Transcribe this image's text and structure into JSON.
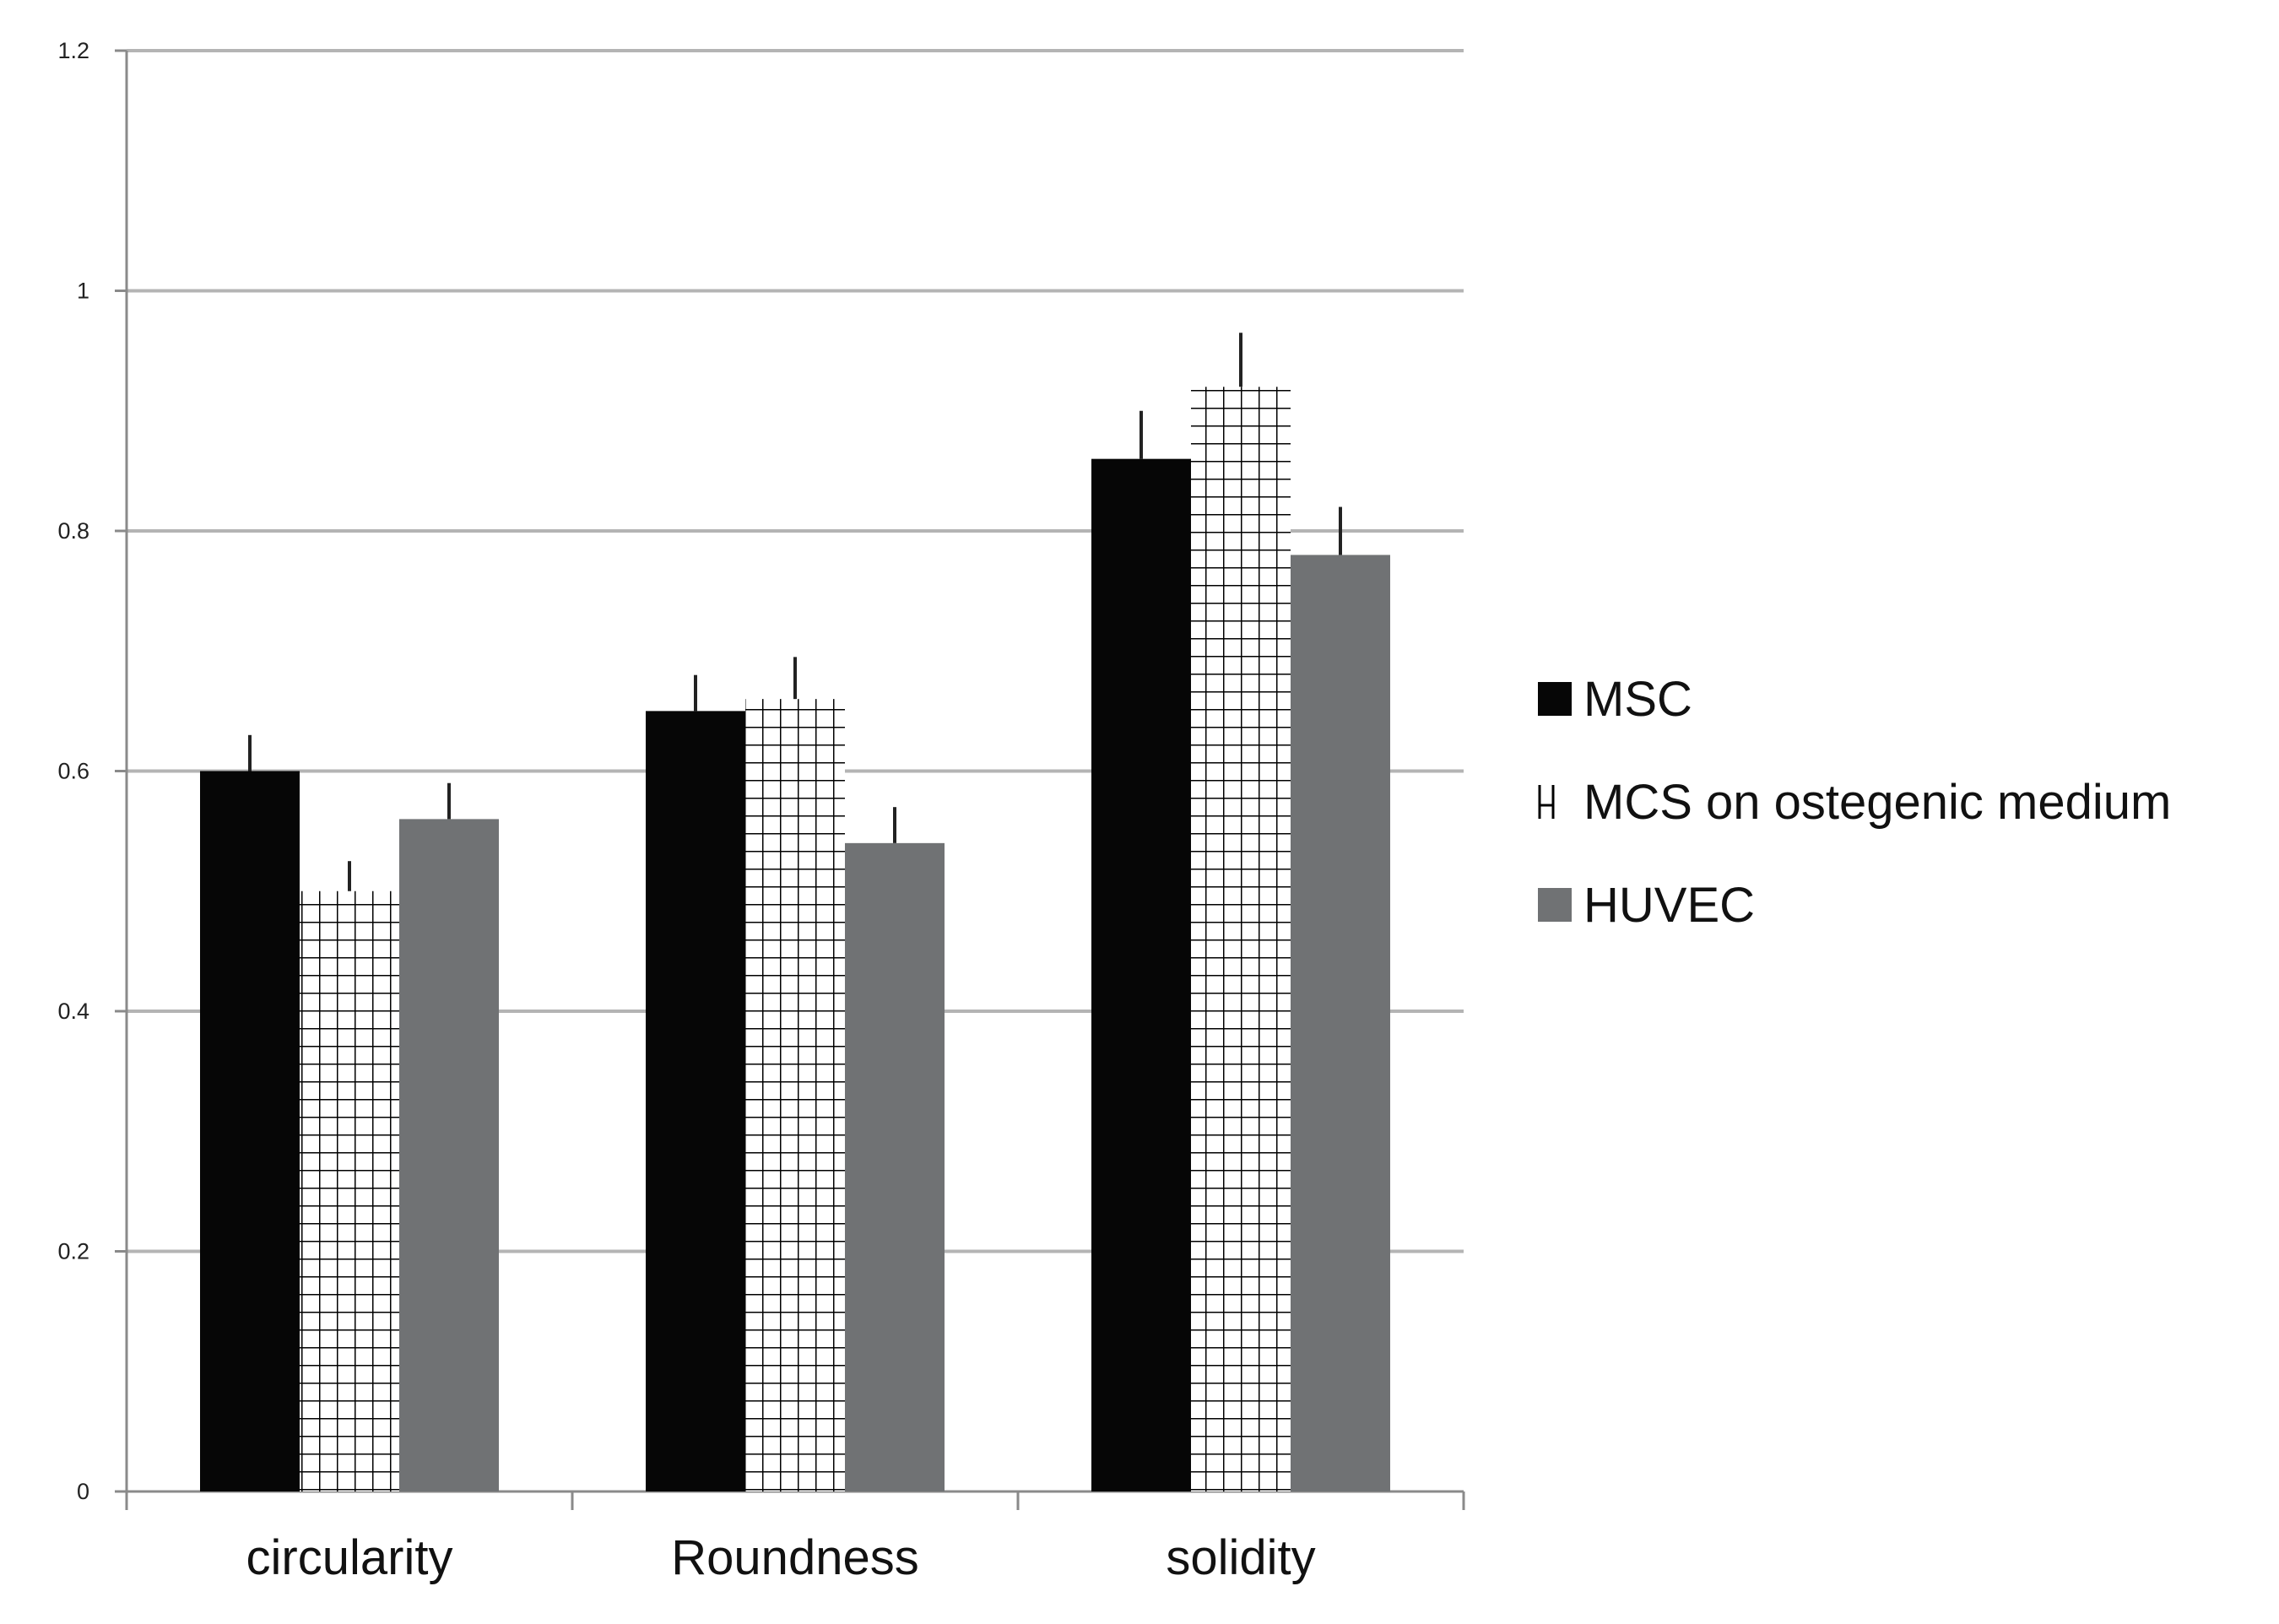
{
  "chart_data": {
    "type": "bar",
    "title": "",
    "xlabel": "",
    "ylabel": "",
    "categories": [
      "circularity",
      "Roundness",
      "solidity"
    ],
    "series": [
      {
        "name": "MSC",
        "values": [
          0.6,
          0.65,
          0.86
        ],
        "errors": [
          0.03,
          0.03,
          0.04
        ],
        "fill": "solid",
        "color": "#060606"
      },
      {
        "name": "MCS on ostegenic medium",
        "values": [
          0.5,
          0.66,
          0.92
        ],
        "errors": [
          0.025,
          0.035,
          0.045
        ],
        "fill": "grid-hatch",
        "color": "#000000"
      },
      {
        "name": "HUVEC",
        "values": [
          0.56,
          0.54,
          0.78
        ],
        "errors": [
          0.03,
          0.03,
          0.04
        ],
        "fill": "solid",
        "color": "#707274"
      }
    ],
    "ylim": [
      0,
      1.2
    ],
    "yticks": [
      0,
      0.2,
      0.4,
      0.6,
      0.8,
      1,
      1.2
    ],
    "ytick_labels": [
      "0",
      "0.2",
      "0.4",
      "0.6",
      "0.8",
      "1",
      "1.2"
    ],
    "grid": true,
    "legend_position": "right",
    "gridline_color": "#b4b4b4",
    "axis_color": "#8a8a8a"
  }
}
